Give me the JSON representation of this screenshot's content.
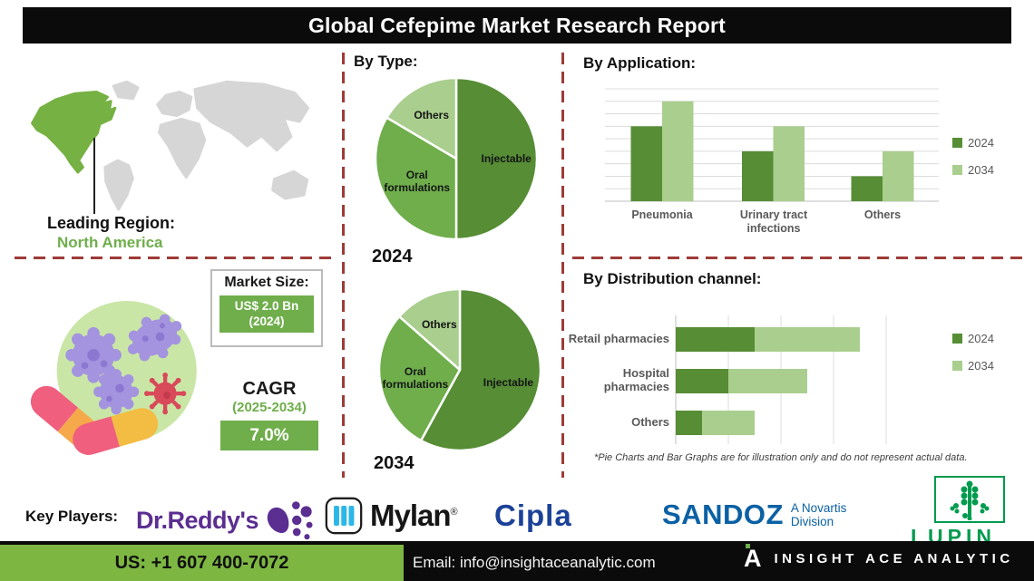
{
  "header": {
    "title": "Global Cefepime Market Research Report"
  },
  "sections": {
    "by_type": "By Type:",
    "by_application": "By Application:",
    "by_distribution": "By Distribution channel:"
  },
  "leading_region": {
    "label": "Leading Region:",
    "value": "North America"
  },
  "market": {
    "size_label": "Market Size:",
    "size_value": "US$ 2.0 Bn",
    "size_year": "(2024)",
    "cagr_label": "CAGR",
    "cagr_period": "(2025-2034)",
    "cagr_value": "7.0%"
  },
  "footnote": "*Pie Charts and Bar Graphs are for illustration only and do not represent actual data.",
  "key_players": {
    "label": "Key Players:",
    "players": [
      "Dr.Reddy's",
      "Mylan",
      "Cipla",
      "SANDOZ",
      "LUPIN"
    ],
    "mylan_reg": "®",
    "sandoz_sub_line1": "A Novartis",
    "sandoz_sub_line2": "Division"
  },
  "footer": {
    "phone": "US: +1 607 400-7072",
    "email": "Email: info@insightaceanalytic.com",
    "brand": "INSIGHT ACE ANALYTIC",
    "brand_letter": "A"
  },
  "colors": {
    "green_dark": "#568d35",
    "green_mid": "#6fae4b",
    "green_light": "#a9ce8e",
    "map_region": "#76b143",
    "map_land": "#d6d6d6",
    "dash_red": "#9e3b38",
    "grid": "#dcdcdc",
    "axis": "#bfbfbf",
    "text_gray": "#595959"
  },
  "chart_data": [
    {
      "id": "pie2024",
      "type": "pie",
      "title": "2024",
      "labels": [
        "Injectable",
        "Oral formulations",
        "Others"
      ],
      "values": [
        50,
        33.5,
        16.5
      ],
      "legend_position": "none"
    },
    {
      "id": "pie2034",
      "type": "pie",
      "title": "2034",
      "labels": [
        "Injectable",
        "Oral formulations",
        "Others"
      ],
      "values": [
        58,
        28.5,
        13.5
      ],
      "legend_position": "none"
    },
    {
      "id": "byApplication",
      "type": "bar",
      "title": "By Application:",
      "categories": [
        "Pneumonia",
        "Urinary tract infections",
        "Others"
      ],
      "series": [
        {
          "name": "2024",
          "values": [
            6,
            4,
            2
          ]
        },
        {
          "name": "2034",
          "values": [
            8,
            6,
            4
          ]
        }
      ],
      "ylim": [
        0,
        9
      ],
      "grid": true,
      "legend_position": "right"
    },
    {
      "id": "byDistribution",
      "type": "bar",
      "orientation": "horizontal",
      "stacked": true,
      "title": "By Distribution channel:",
      "categories": [
        "Retail pharmacies",
        "Hospital pharmacies",
        "Others"
      ],
      "series": [
        {
          "name": "2024",
          "values": [
            1.5,
            1.0,
            0.5
          ]
        },
        {
          "name": "2034",
          "values": [
            2.0,
            1.5,
            1.0
          ]
        }
      ],
      "xlim": [
        0,
        4
      ],
      "grid": true,
      "legend_position": "right"
    }
  ]
}
